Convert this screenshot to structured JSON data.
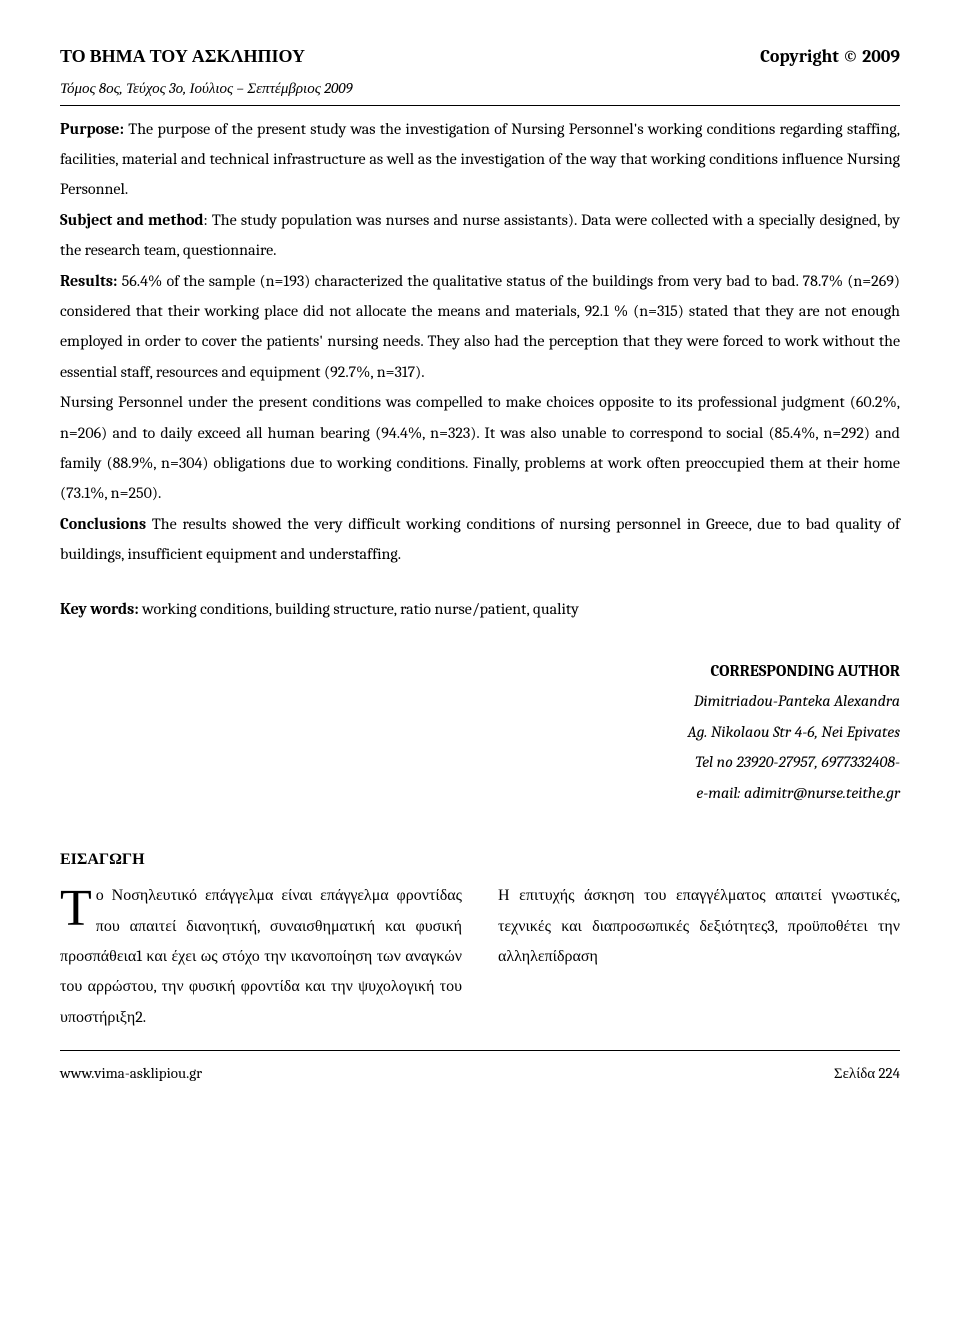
{
  "header": {
    "journal_title": "ΤΟ ΒΗΜΑ ΤΟΥ ΑΣΚΛΗΠΙΟΥ",
    "copyright": "Copyright © 2009",
    "issue": "Τόμος 8ος, Τεύχος 3ο, Ιούλιος – Σεπτέμβριος 2009"
  },
  "abstract": {
    "purpose_label": "Purpose:",
    "purpose_text": "  The purpose of the present study was the investigation of Nursing Personnel's working conditions regarding staffing, facilities, material and technical infrastructure as well as the investigation of the way that working conditions influence Nursing Personnel.",
    "subject_label": "Subject and method",
    "subject_text": ": The study population was nurses and nurse assistants).  Data were collected with a specially designed, by the research team, questionnaire.",
    "results_label": "Results:",
    "results_text_1": " 56.4% of the sample (n=193) characterized the qualitative status of the buildings from very bad to bad.  78.7% (n=269) considered that their working place did not allocate the means and materials, 92.1 % (n=315) stated that they are not enough employed in order to cover the patients' nursing needs.  They also had the perception that they were forced to work without the essential staff, resources and equipment (92.7%, n=317).",
    "results_text_2": "Nursing Personnel under the present conditions was compelled to make choices opposite to its professional judgment (60.2%, n=206) and to daily exceed all human bearing (94.4%, n=323).  It was also unable to correspond to social (85.4%, n=292) and family (88.9%, n=304) obligations due to working conditions.  Finally, problems at work often preoccupied them at their home (73.1%, n=250).",
    "conclusions_label": "Conclusions",
    "conclusions_text": " The results showed the very difficult working conditions of nursing personnel in Greece, due to bad quality of buildings, insufficient equipment and understaffing."
  },
  "keywords": {
    "label": "Key words:",
    "text": " working conditions, building structure, ratio nurse/patient, quality"
  },
  "corresponding": {
    "title": "CORRESPONDING AUTHOR",
    "name": "Dimitriadou-Panteka Alexandra",
    "address": "Ag. Nikolaou Str 4-6, Nei Epivates",
    "tel": "Tel no 23920-27957, 6977332408-",
    "email": "e-mail: adimitr@nurse.teithe.gr"
  },
  "intro": {
    "heading": "ΕΙΣΑΓΩΓΗ",
    "dropcap": "Τ",
    "col_text": "ο Νοσηλευτικό επάγγελμα είναι επάγγελμα φροντίδας που απαιτεί διανοητική, συναισθηματική και φυσική προσπάθεια1 και έχει ως στόχο την ικανοποίηση των αναγκών του αρρώστου, την φυσική φροντίδα και την ψυχολογική του υποστήριξη2.",
    "col_text_2": "Η επιτυχής άσκηση του επαγγέλματος απαιτεί γνωστικές, τεχνικές και διαπροσωπικές δεξιότητες3, προϋποθέτει την αλληλεπίδραση"
  },
  "footer": {
    "url": "www.vima-asklipiou.gr",
    "page": "Σελίδα 224"
  }
}
